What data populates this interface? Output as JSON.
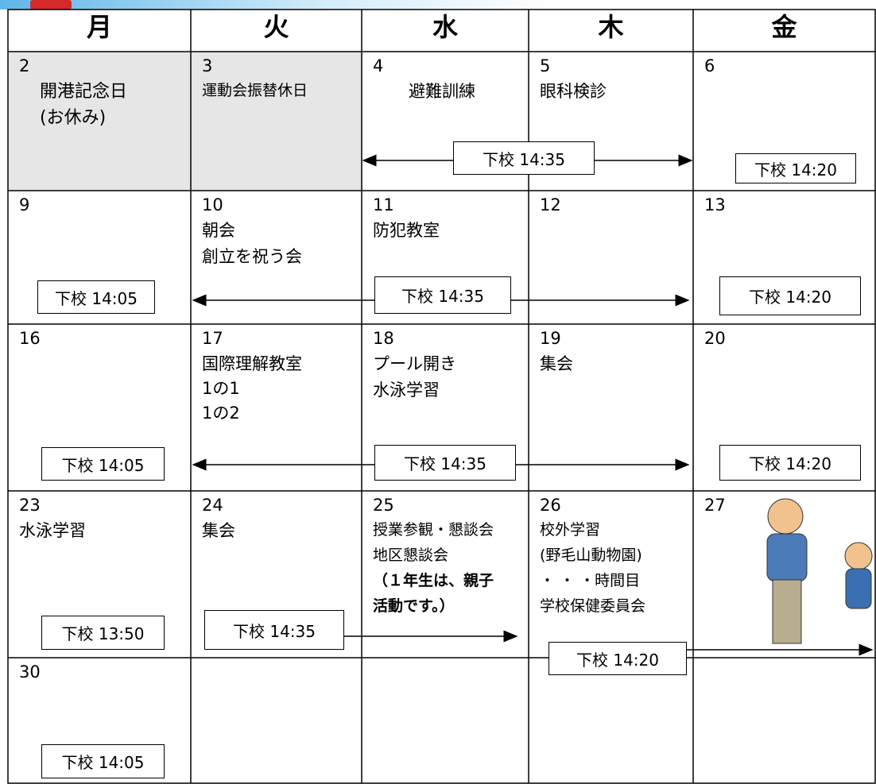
{
  "header": {
    "days": [
      "月",
      "火",
      "水",
      "木",
      "金"
    ]
  },
  "weeks": [
    {
      "cells": [
        {
          "date": "2",
          "events": [
            "開港記念日",
            "(お休み)"
          ]
        },
        {
          "date": "3",
          "events": [
            "運動会振替休日"
          ]
        },
        {
          "date": "4",
          "events": [
            "避難訓練"
          ]
        },
        {
          "date": "5",
          "events": [
            "眼科検診"
          ]
        },
        {
          "date": "6",
          "events": []
        }
      ],
      "dismissals": [
        "下校 14:35",
        "下校 14:20"
      ]
    },
    {
      "cells": [
        {
          "date": "9",
          "events": []
        },
        {
          "date": "10",
          "events": [
            "朝会",
            "創立を祝う会"
          ]
        },
        {
          "date": "11",
          "events": [
            "防犯教室"
          ]
        },
        {
          "date": "12",
          "events": []
        },
        {
          "date": "13",
          "events": []
        }
      ],
      "dismissals": [
        "下校 14:05",
        "下校 14:35",
        "下校 14:20"
      ]
    },
    {
      "cells": [
        {
          "date": "16",
          "events": []
        },
        {
          "date": "17",
          "events": [
            "国際理解教室",
            "1の1",
            "1の2"
          ]
        },
        {
          "date": "18",
          "events": [
            "プール開き",
            "水泳学習"
          ]
        },
        {
          "date": "19",
          "events": [
            "集会"
          ]
        },
        {
          "date": "20",
          "events": []
        }
      ],
      "dismissals": [
        "下校 14:05",
        "下校 14:35",
        "下校 14:20"
      ]
    },
    {
      "cells": [
        {
          "date": "23",
          "events": [
            "水泳学習"
          ]
        },
        {
          "date": "24",
          "events": [
            "集会"
          ]
        },
        {
          "date": "25",
          "events": [
            "授業参観・懇談会",
            "地区懇談会",
            "（１年生は、親子",
            "活動です。）"
          ]
        },
        {
          "date": "26",
          "events": [
            "校外学習",
            "(野毛山動物園)",
            "・ ・ ・時間目",
            "学校保健委員会"
          ]
        },
        {
          "date": "27",
          "events": []
        }
      ],
      "dismissals": [
        "下校 13:50",
        "下校 14:35",
        "下校 14:20"
      ]
    },
    {
      "cells": [
        {
          "date": "30",
          "events": []
        }
      ],
      "dismissals": [
        "下校 14:05"
      ]
    }
  ]
}
